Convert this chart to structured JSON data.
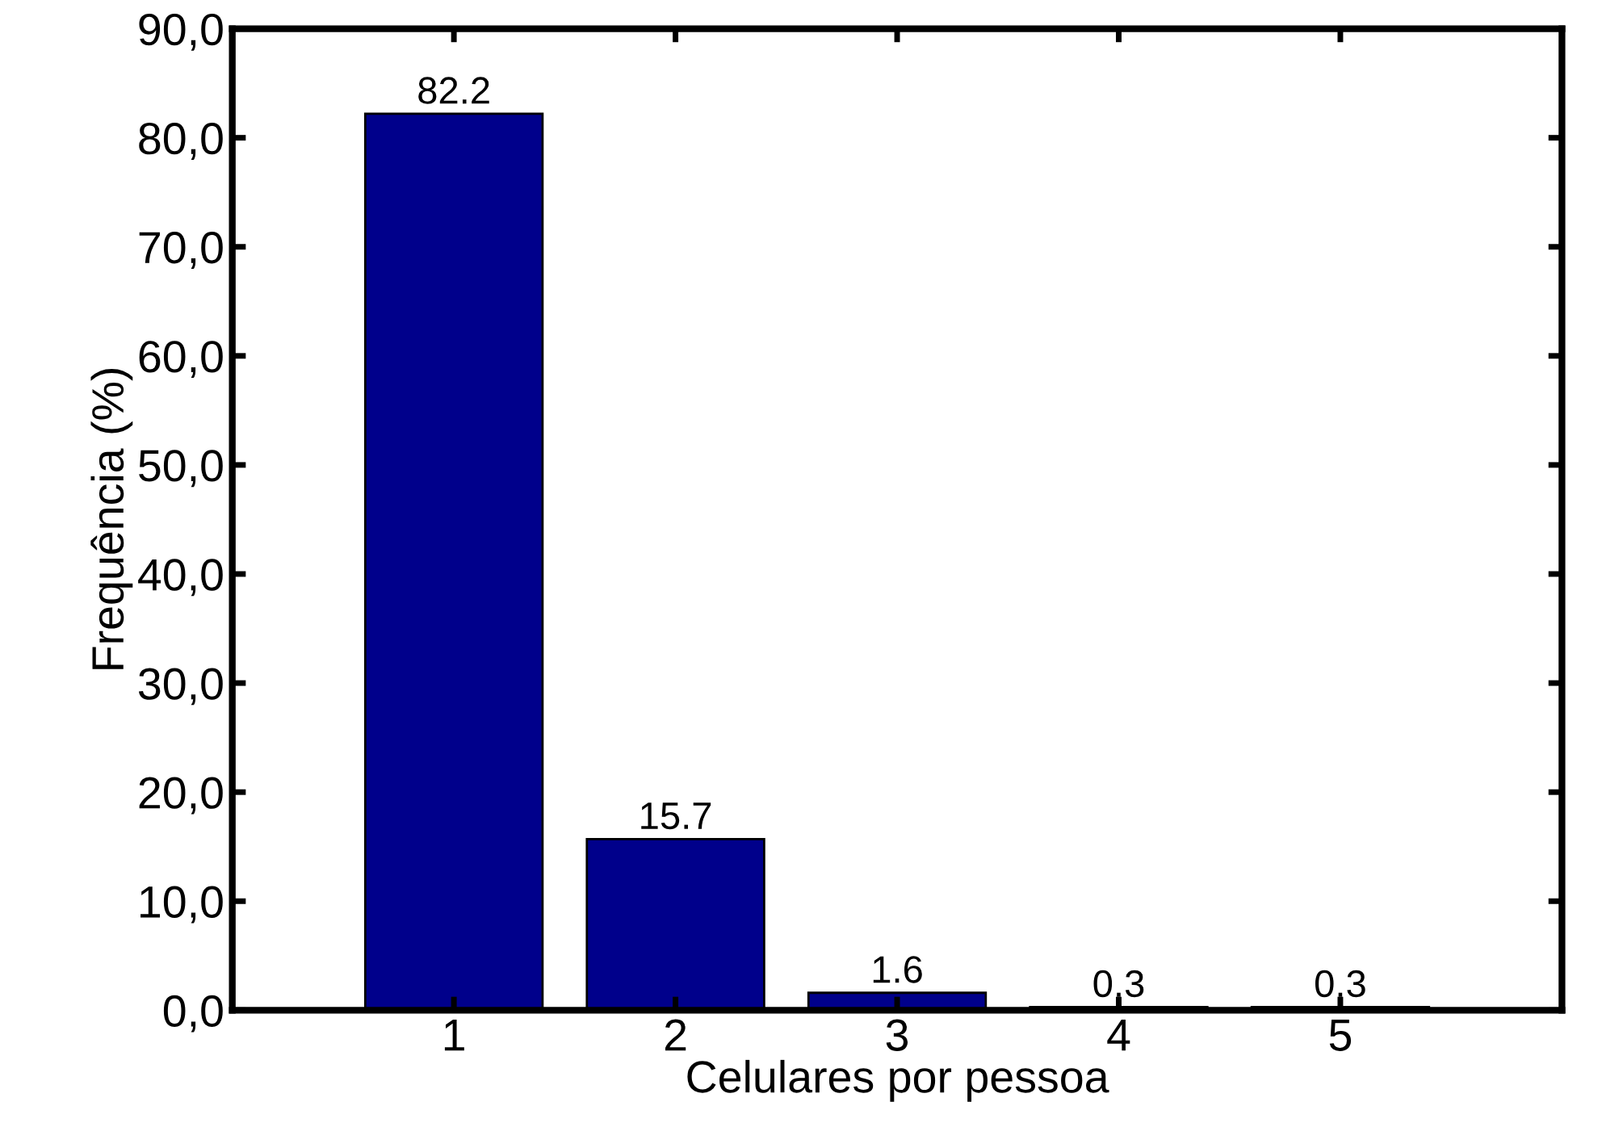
{
  "chart_data": {
    "type": "bar",
    "xlabel": "Celulares por pessoa",
    "ylabel": "Frequência (%)",
    "x": [
      1,
      2,
      3,
      4,
      5
    ],
    "values": [
      82.2,
      15.7,
      1.6,
      0.3,
      0.3
    ],
    "color": "#00008b",
    "data_labels": true,
    "xlim": [
      0,
      6
    ],
    "xticks": [
      1,
      2,
      3,
      4,
      5
    ],
    "ylim": [
      0,
      90
    ],
    "yticks": [
      {
        "value": 0,
        "label": "0,0"
      },
      {
        "value": 10,
        "label": "10,0"
      },
      {
        "value": 20,
        "label": "20,0"
      },
      {
        "value": 30,
        "label": "30,0"
      },
      {
        "value": 40,
        "label": "40,0"
      },
      {
        "value": 50,
        "label": "50,0"
      },
      {
        "value": 60,
        "label": "60,0"
      },
      {
        "value": 70,
        "label": "70,0"
      },
      {
        "value": 80,
        "label": "80,0"
      },
      {
        "value": 90,
        "label": "90,0"
      }
    ],
    "grid": false
  }
}
